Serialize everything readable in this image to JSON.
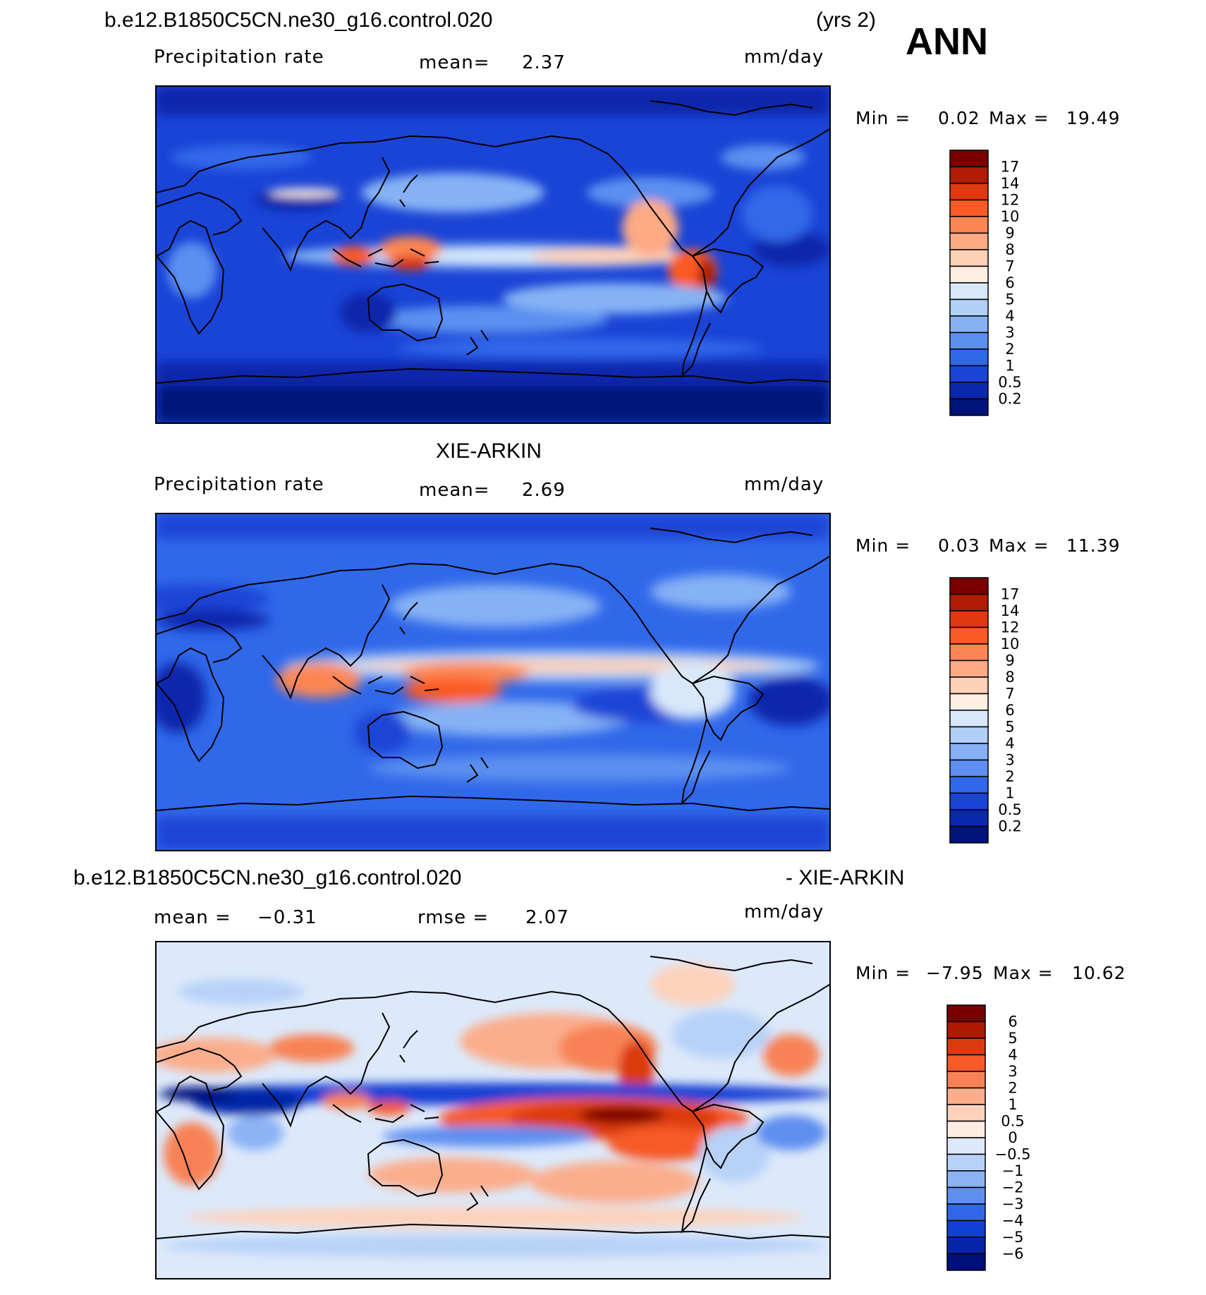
{
  "header": {
    "case_name": "b.e12.B1850C5CN.ne30_g16.control.020",
    "years": "(yrs 2)",
    "season": "ANN"
  },
  "panels": [
    {
      "id": "model",
      "title": "",
      "variable": "Precipitation rate",
      "stat_label": "mean=",
      "stat_value": "2.37",
      "units": "mm/day",
      "min_label": "Min =",
      "min_value": "0.02",
      "max_label": "Max =",
      "max_value": "19.49",
      "colorbar": {
        "labels": [
          "17",
          "14",
          "12",
          "10",
          "9",
          "8",
          "7",
          "6",
          "5",
          "4",
          "3",
          "2",
          "1",
          "0.5",
          "0.2"
        ],
        "colors": [
          "#7a0000",
          "#b01c05",
          "#e03810",
          "#fa5a24",
          "#fc8653",
          "#fdaa85",
          "#fdd0b8",
          "#fdeee2",
          "#d8e8fa",
          "#b1d0f8",
          "#86b2f5",
          "#5c8ff0",
          "#3068ea",
          "#1a44d6",
          "#0a28ac",
          "#00137a"
        ]
      }
    },
    {
      "id": "obs",
      "title": "XIE-ARKIN",
      "variable": "Precipitation rate",
      "stat_label": "mean=",
      "stat_value": "2.69",
      "units": "mm/day",
      "min_label": "Min =",
      "min_value": "0.03",
      "max_label": "Max =",
      "max_value": "11.39",
      "colorbar": {
        "labels": [
          "17",
          "14",
          "12",
          "10",
          "9",
          "8",
          "7",
          "6",
          "5",
          "4",
          "3",
          "2",
          "1",
          "0.5",
          "0.2"
        ],
        "colors": [
          "#7a0000",
          "#b01c05",
          "#e03810",
          "#fa5a24",
          "#fc8653",
          "#fdaa85",
          "#fdd0b8",
          "#fdeee2",
          "#d8e8fa",
          "#b1d0f8",
          "#86b2f5",
          "#5c8ff0",
          "#3068ea",
          "#1a44d6",
          "#0a28ac",
          "#00137a"
        ]
      }
    },
    {
      "id": "diff",
      "title_left": "b.e12.B1850C5CN.ne30_g16.control.020",
      "title_right": "- XIE-ARKIN",
      "stat_label": "mean =",
      "stat_value": "−0.31",
      "stat2_label": "rmse =",
      "stat2_value": "2.07",
      "units": "mm/day",
      "min_label": "Min =",
      "min_value": "−7.95",
      "max_label": "Max =",
      "max_value": "10.62",
      "colorbar": {
        "labels": [
          "6",
          "5",
          "4",
          "3",
          "2",
          "1",
          "0.5",
          "0",
          "−0.5",
          "−1",
          "−2",
          "−3",
          "−4",
          "−5",
          "−6"
        ],
        "colors": [
          "#7a0000",
          "#ad1a00",
          "#dc3a0e",
          "#f65a26",
          "#f88255",
          "#fbad8c",
          "#fdd2bc",
          "#feece0",
          "#dce9fa",
          "#b7d1f8",
          "#8cb3f5",
          "#5f8ff0",
          "#3066e9",
          "#1340d4",
          "#0625a8",
          "#000f7c"
        ]
      }
    }
  ]
}
